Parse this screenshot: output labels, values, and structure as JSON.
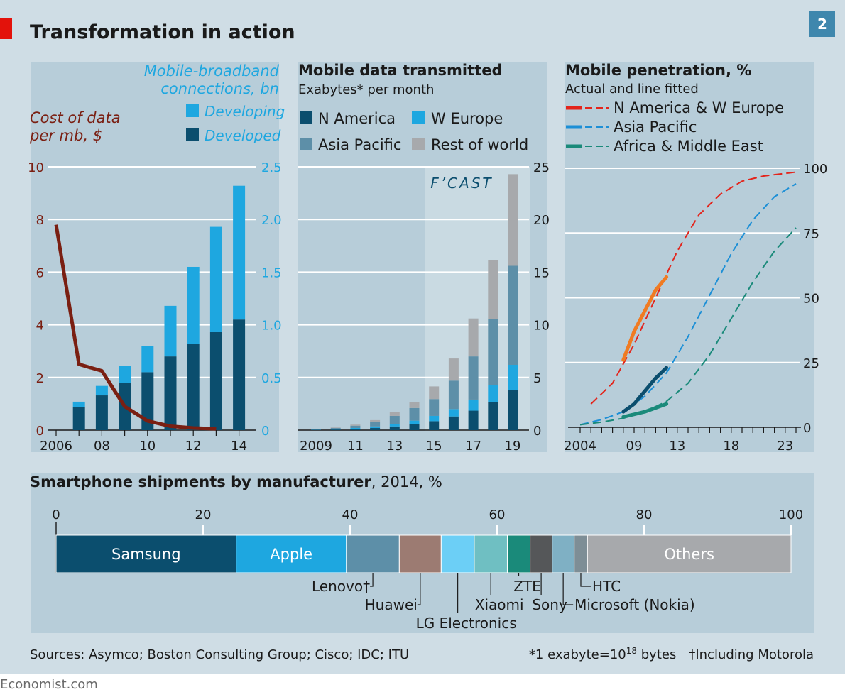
{
  "header": {
    "title": "Transformation in action",
    "chart_number": "2"
  },
  "footer": {
    "sources": "Sources: Asymco; Boston Consulting Group; Cisco; IDC; ITU",
    "note_exabyte_prefix": "*1 exabyte=10",
    "note_exabyte_exp": "18",
    "note_exabyte_suffix": " bytes",
    "note_motorola": "†Including Motorola",
    "credit": "Economist.com"
  },
  "colors": {
    "background": "#cfdde5",
    "panel": "#b7cdd9",
    "forecast_shade": "#c9dae2",
    "dark_blue": "#0b4e6e",
    "light_blue": "#1ea7e0",
    "cost_line": "#7a1f12",
    "asia_pacific": "#5d8fa8",
    "rest_of_world": "#a7a9ac",
    "red_accent": "#e3120b",
    "penetration_na_europe": "#e3241b",
    "penetration_asia": "#1c8fd6",
    "penetration_africa": "#1a8a7a"
  },
  "chart_data": [
    {
      "type": "bar",
      "title": "Mobile-broadband connections, bn",
      "left_axis_title": "Cost of data per mb, $",
      "x_tick_labels": [
        "2006",
        "08",
        "10",
        "12",
        "14"
      ],
      "years": [
        2007,
        2008,
        2009,
        2010,
        2011,
        2012,
        2013,
        2014
      ],
      "legend": [
        "Developing",
        "Developed"
      ],
      "series": [
        {
          "name": "Developed",
          "values": [
            0.22,
            0.33,
            0.45,
            0.55,
            0.7,
            0.82,
            0.93,
            1.05
          ]
        },
        {
          "name": "Developing",
          "values": [
            0.05,
            0.09,
            0.16,
            0.25,
            0.48,
            0.73,
            1.0,
            1.27
          ]
        }
      ],
      "right_axis": {
        "label": "Mobile-broadband connections, bn",
        "min": 0,
        "max": 2.5,
        "ticks": [
          "0",
          "0.5",
          "1.0",
          "1.5",
          "2.0",
          "2.5"
        ]
      },
      "left_axis": {
        "label": "Cost of data per mb, $",
        "min": 0,
        "max": 10,
        "ticks": [
          "0",
          "2",
          "4",
          "6",
          "8",
          "10"
        ]
      },
      "line_series": {
        "name": "Cost of data per mb, $",
        "x": [
          2006,
          2007,
          2008,
          2009,
          2010,
          2011,
          2012,
          2013
        ],
        "values": [
          7.8,
          2.5,
          2.25,
          0.9,
          0.35,
          0.15,
          0.08,
          0.05
        ]
      }
    },
    {
      "type": "bar",
      "title": "Mobile data transmitted",
      "subtitle": "Exabytes* per month",
      "x_tick_labels": [
        "2009",
        "11",
        "13",
        "15",
        "17",
        "19"
      ],
      "years": [
        2009,
        2010,
        2011,
        2012,
        2013,
        2014,
        2015,
        2016,
        2017,
        2018,
        2019
      ],
      "forecast_label": "F’CAST",
      "forecast_from_year": 2015,
      "legend": [
        "N America",
        "W Europe",
        "Asia Pacific",
        "Rest of world"
      ],
      "series": [
        {
          "name": "N America",
          "values": [
            0.03,
            0.06,
            0.12,
            0.2,
            0.35,
            0.55,
            0.85,
            1.3,
            1.85,
            2.65,
            3.8
          ]
        },
        {
          "name": "W Europe",
          "values": [
            0.02,
            0.04,
            0.08,
            0.15,
            0.25,
            0.35,
            0.5,
            0.7,
            1.05,
            1.6,
            2.4
          ]
        },
        {
          "name": "Asia Pacific",
          "values": [
            0.04,
            0.1,
            0.22,
            0.4,
            0.75,
            1.2,
            1.6,
            2.7,
            4.1,
            6.3,
            9.4
          ]
        },
        {
          "name": "Rest of world",
          "values": [
            0.02,
            0.05,
            0.1,
            0.2,
            0.4,
            0.55,
            1.2,
            2.1,
            3.6,
            5.6,
            8.7
          ]
        }
      ],
      "y_axis": {
        "min": 0,
        "max": 25,
        "ticks": [
          "0",
          "5",
          "10",
          "15",
          "20",
          "25"
        ]
      }
    },
    {
      "type": "line",
      "title": "Mobile penetration, %",
      "subtitle": "Actual and line fitted",
      "x_tick_labels": [
        "2004",
        "09",
        "13",
        "18",
        "23"
      ],
      "x_range": [
        2004,
        2024
      ],
      "y_axis": {
        "min": 0,
        "max": 100,
        "ticks": [
          "0",
          "25",
          "50",
          "75",
          "100"
        ]
      },
      "legend": [
        "N America & W Europe",
        "Asia Pacific",
        "Africa & Middle East"
      ],
      "series": [
        {
          "name": "N America & W Europe",
          "actual": {
            "x": [
              2008,
              2009,
              2010,
              2011,
              2012
            ],
            "y": [
              26,
              37,
              45,
              53,
              58
            ]
          },
          "fitted": {
            "x": [
              2005,
              2007,
              2009,
              2011,
              2013,
              2015,
              2017,
              2019,
              2021,
              2024
            ],
            "y": [
              9,
              17,
              32,
              50,
              68,
              82,
              90,
              95,
              97,
              98.5
            ]
          }
        },
        {
          "name": "Asia Pacific",
          "actual": {
            "x": [
              2008,
              2009,
              2010,
              2011,
              2012
            ],
            "y": [
              6,
              9,
              14,
              19,
              23
            ]
          },
          "fitted": {
            "x": [
              2004,
              2006,
              2008,
              2010,
              2012,
              2014,
              2016,
              2018,
              2020,
              2022,
              2024
            ],
            "y": [
              1,
              3,
              6,
              12,
              21,
              35,
              51,
              67,
              80,
              89,
              94
            ]
          }
        },
        {
          "name": "Africa & Middle East",
          "actual": {
            "x": [
              2008,
              2009,
              2010,
              2011,
              2012
            ],
            "y": [
              4,
              5,
              6,
              7.5,
              9
            ]
          },
          "fitted": {
            "x": [
              2004,
              2006,
              2008,
              2010,
              2012,
              2014,
              2016,
              2018,
              2020,
              2022,
              2024
            ],
            "y": [
              1,
              2,
              3.5,
              6,
              10,
              17,
              28,
              42,
              56,
              68,
              77
            ]
          }
        }
      ]
    },
    {
      "type": "bar",
      "orientation": "horizontal-stacked",
      "title": "Smartphone shipments by manufacturer",
      "title_suffix": ", 2014, %",
      "x_axis": {
        "min": 0,
        "max": 100,
        "ticks": [
          "0",
          "20",
          "40",
          "60",
          "80",
          "100"
        ]
      },
      "segments": [
        {
          "name": "Samsung",
          "value": 24.5,
          "color": "#0b4e6e",
          "label_inside": true
        },
        {
          "name": "Apple",
          "value": 15.0,
          "color": "#1ea7e0",
          "label_inside": true
        },
        {
          "name": "Lenovo†",
          "value": 7.2,
          "color": "#5d8fa8",
          "label_inside": false
        },
        {
          "name": "Huawei",
          "value": 5.7,
          "color": "#9c7b72",
          "label_inside": false
        },
        {
          "name": "LG Electronics",
          "value": 4.5,
          "color": "#6ccff6",
          "label_inside": false
        },
        {
          "name": "Xiaomi",
          "value": 4.5,
          "color": "#6fbfc2",
          "label_inside": false
        },
        {
          "name": "ZTE",
          "value": 3.1,
          "color": "#1a8a7a",
          "label_inside": false
        },
        {
          "name": "Sony",
          "value": 3.0,
          "color": "#555759",
          "label_inside": false
        },
        {
          "name": "Microsoft (Nokia)",
          "value": 3.0,
          "color": "#7fb0c4",
          "label_inside": false
        },
        {
          "name": "HTC",
          "value": 1.8,
          "color": "#7e8e96",
          "label_inside": false
        },
        {
          "name": "Others",
          "value": 27.7,
          "color": "#a7a9ac",
          "label_inside": true
        }
      ]
    }
  ]
}
